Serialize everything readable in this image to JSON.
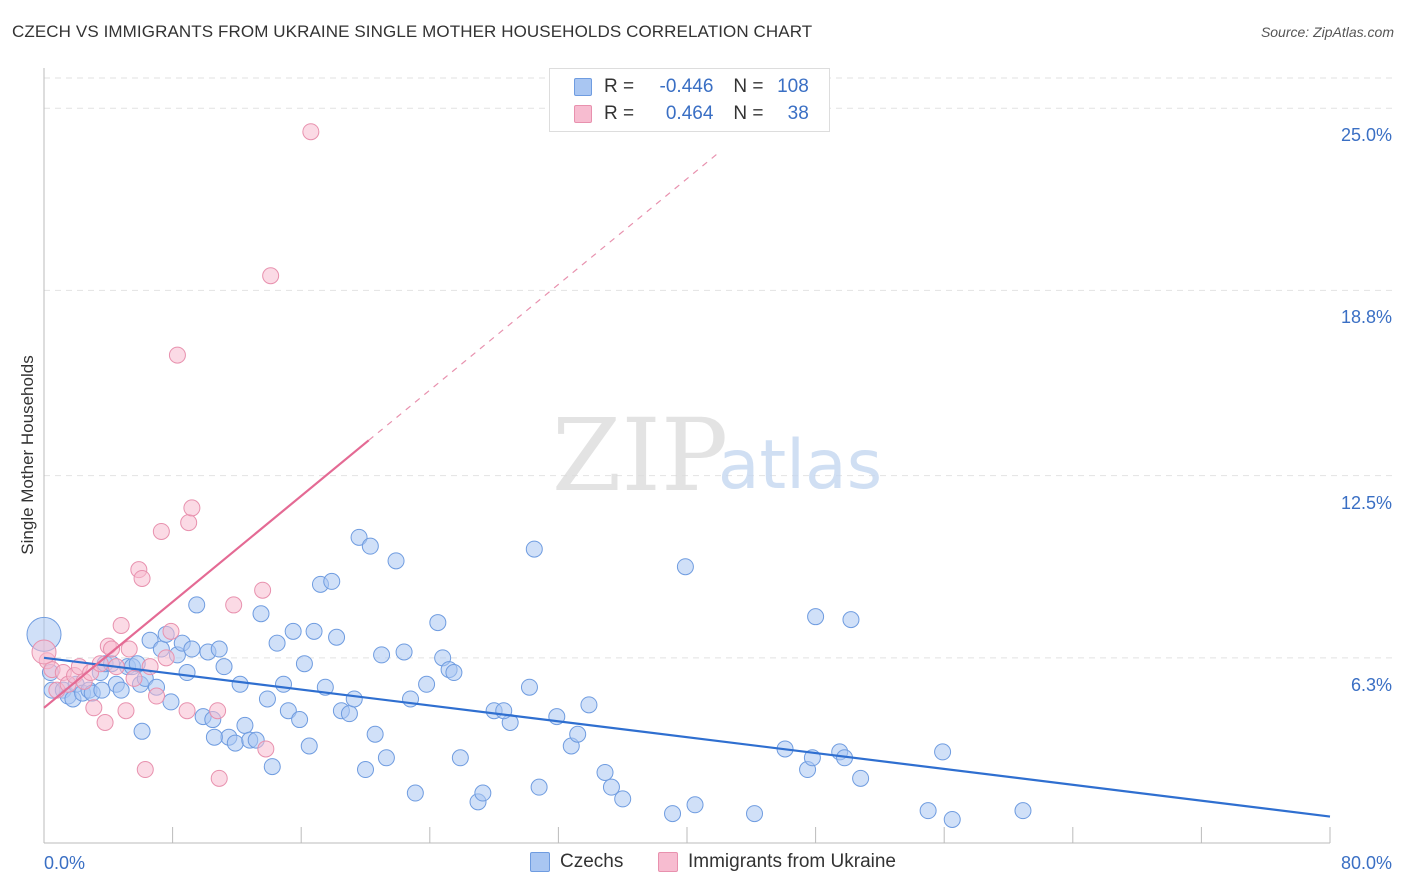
{
  "title": "CZECH VS IMMIGRANTS FROM UKRAINE SINGLE MOTHER HOUSEHOLDS CORRELATION CHART",
  "source": "Source: ZipAtlas.com",
  "watermark": {
    "zip": "ZIP",
    "atlas": "atlas"
  },
  "legend": {
    "r_label": "R =",
    "n_label": "N =",
    "rows": [
      {
        "r": "-0.446",
        "n": "108",
        "color": "#a9c6f2",
        "border": "#6f9ce0"
      },
      {
        "r": "0.464",
        "n": "38",
        "color": "#f7bcd0",
        "border": "#e891ae"
      }
    ]
  },
  "bottom_legend": [
    {
      "label": "Czechs",
      "color": "#a9c6f2",
      "border": "#6f9ce0"
    },
    {
      "label": "Immigrants from Ukraine",
      "color": "#f7bcd0",
      "border": "#e891ae"
    }
  ],
  "chart_data": {
    "type": "scatter",
    "title": "CZECH VS IMMIGRANTS FROM UKRAINE SINGLE MOTHER HOUSEHOLDS CORRELATION CHART",
    "xlabel": "",
    "ylabel": "Single Mother Households",
    "xlim": [
      0,
      80
    ],
    "ylim": [
      0,
      26.3
    ],
    "x_tick_labels": [
      "0.0%",
      "80.0%"
    ],
    "y_ticks": [
      6.3,
      12.5,
      18.8,
      25.0
    ],
    "y_tick_labels": [
      "6.3%",
      "12.5%",
      "18.8%",
      "25.0%"
    ],
    "grid": "horizontal dashed",
    "legend_position": "top-center",
    "series": [
      {
        "name": "Czechs",
        "color": "#6f9ce0",
        "fill": "#a9c6f2",
        "trend": {
          "x": [
            0,
            80
          ],
          "y": [
            6.3,
            0.9
          ]
        },
        "points": [
          [
            0.5,
            5.2
          ],
          [
            1.2,
            5.2
          ],
          [
            1.5,
            5.0
          ],
          [
            1.8,
            4.9
          ],
          [
            2.0,
            5.4
          ],
          [
            2.4,
            5.1
          ],
          [
            2.8,
            5.2
          ],
          [
            3.0,
            5.1
          ],
          [
            3.5,
            5.8
          ],
          [
            3.8,
            6.1
          ],
          [
            4.2,
            6.1
          ],
          [
            4.5,
            5.4
          ],
          [
            4.8,
            5.2
          ],
          [
            5.2,
            6.0
          ],
          [
            5.5,
            6.0
          ],
          [
            5.8,
            6.1
          ],
          [
            6.0,
            5.4
          ],
          [
            6.3,
            5.6
          ],
          [
            6.6,
            6.9
          ],
          [
            7.0,
            5.3
          ],
          [
            7.3,
            6.6
          ],
          [
            7.6,
            7.1
          ],
          [
            7.9,
            4.8
          ],
          [
            8.3,
            6.4
          ],
          [
            8.6,
            6.8
          ],
          [
            8.9,
            5.8
          ],
          [
            9.2,
            6.6
          ],
          [
            9.5,
            8.1
          ],
          [
            9.9,
            4.3
          ],
          [
            10.2,
            6.5
          ],
          [
            10.5,
            4.2
          ],
          [
            10.9,
            6.6
          ],
          [
            11.2,
            6.0
          ],
          [
            11.5,
            3.6
          ],
          [
            11.9,
            3.4
          ],
          [
            12.2,
            5.4
          ],
          [
            12.5,
            4.0
          ],
          [
            12.8,
            3.5
          ],
          [
            13.2,
            3.5
          ],
          [
            13.5,
            7.8
          ],
          [
            13.9,
            4.9
          ],
          [
            14.2,
            2.6
          ],
          [
            14.5,
            6.8
          ],
          [
            14.9,
            5.4
          ],
          [
            15.2,
            4.5
          ],
          [
            15.5,
            7.2
          ],
          [
            15.9,
            4.2
          ],
          [
            16.2,
            6.1
          ],
          [
            16.5,
            3.3
          ],
          [
            16.8,
            7.2
          ],
          [
            17.2,
            8.8
          ],
          [
            17.5,
            5.3
          ],
          [
            17.9,
            8.9
          ],
          [
            18.2,
            7.0
          ],
          [
            18.5,
            4.5
          ],
          [
            19.0,
            4.4
          ],
          [
            19.3,
            4.9
          ],
          [
            19.6,
            10.4
          ],
          [
            20.0,
            2.5
          ],
          [
            20.3,
            10.1
          ],
          [
            20.6,
            3.7
          ],
          [
            21.0,
            6.4
          ],
          [
            21.3,
            2.9
          ],
          [
            21.9,
            9.6
          ],
          [
            22.4,
            6.5
          ],
          [
            22.8,
            4.9
          ],
          [
            23.1,
            1.7
          ],
          [
            23.8,
            5.4
          ],
          [
            24.5,
            7.5
          ],
          [
            24.8,
            6.3
          ],
          [
            25.2,
            5.9
          ],
          [
            25.5,
            5.8
          ],
          [
            25.9,
            2.9
          ],
          [
            27.0,
            1.4
          ],
          [
            27.3,
            1.7
          ],
          [
            28.0,
            4.5
          ],
          [
            29.0,
            4.1
          ],
          [
            30.2,
            5.3
          ],
          [
            30.5,
            10.0
          ],
          [
            30.8,
            1.9
          ],
          [
            31.9,
            4.3
          ],
          [
            32.8,
            3.3
          ],
          [
            33.2,
            3.7
          ],
          [
            33.9,
            4.7
          ],
          [
            34.9,
            2.4
          ],
          [
            35.3,
            1.9
          ],
          [
            36.0,
            1.5
          ],
          [
            39.1,
            1.0
          ],
          [
            39.9,
            9.4
          ],
          [
            40.5,
            1.3
          ],
          [
            44.2,
            1.0
          ],
          [
            46.1,
            3.2
          ],
          [
            47.5,
            2.5
          ],
          [
            47.8,
            2.9
          ],
          [
            48.0,
            7.7
          ],
          [
            49.5,
            3.1
          ],
          [
            49.8,
            2.9
          ],
          [
            50.2,
            7.6
          ],
          [
            50.8,
            2.2
          ],
          [
            55.0,
            1.1
          ],
          [
            55.9,
            3.1
          ],
          [
            56.5,
            0.8
          ],
          [
            60.9,
            1.1
          ],
          [
            10.6,
            3.6
          ],
          [
            6.1,
            3.8
          ],
          [
            3.6,
            5.2
          ],
          [
            0.4,
            5.8
          ],
          [
            28.6,
            4.5
          ]
        ]
      },
      {
        "name": "Immigrants from Ukraine",
        "color": "#e891ae",
        "fill": "#f7bcd0",
        "trend": {
          "x": [
            0,
            20.2
          ],
          "y": [
            4.6,
            13.7
          ]
        },
        "trend_extension": {
          "x": [
            20.2,
            42.0
          ],
          "y": [
            13.7,
            23.5
          ]
        },
        "points": [
          [
            0.2,
            6.2
          ],
          [
            0.5,
            5.9
          ],
          [
            0.8,
            5.2
          ],
          [
            1.2,
            5.8
          ],
          [
            1.5,
            5.4
          ],
          [
            1.9,
            5.7
          ],
          [
            2.2,
            6.0
          ],
          [
            2.5,
            5.5
          ],
          [
            2.9,
            5.8
          ],
          [
            3.1,
            4.6
          ],
          [
            3.5,
            6.1
          ],
          [
            3.8,
            4.1
          ],
          [
            4.0,
            6.7
          ],
          [
            4.2,
            6.6
          ],
          [
            4.5,
            6.0
          ],
          [
            4.8,
            7.4
          ],
          [
            5.1,
            4.5
          ],
          [
            5.3,
            6.6
          ],
          [
            5.6,
            5.6
          ],
          [
            5.9,
            9.3
          ],
          [
            6.1,
            9.0
          ],
          [
            6.3,
            2.5
          ],
          [
            6.6,
            6.0
          ],
          [
            7.0,
            5.0
          ],
          [
            7.3,
            10.6
          ],
          [
            7.6,
            6.3
          ],
          [
            7.9,
            7.2
          ],
          [
            8.3,
            16.6
          ],
          [
            8.9,
            4.5
          ],
          [
            9.0,
            10.9
          ],
          [
            9.2,
            11.4
          ],
          [
            10.8,
            4.5
          ],
          [
            10.9,
            2.2
          ],
          [
            11.8,
            8.1
          ],
          [
            13.6,
            8.6
          ],
          [
            13.8,
            3.2
          ],
          [
            14.1,
            19.3
          ],
          [
            16.6,
            24.2
          ]
        ]
      }
    ]
  }
}
